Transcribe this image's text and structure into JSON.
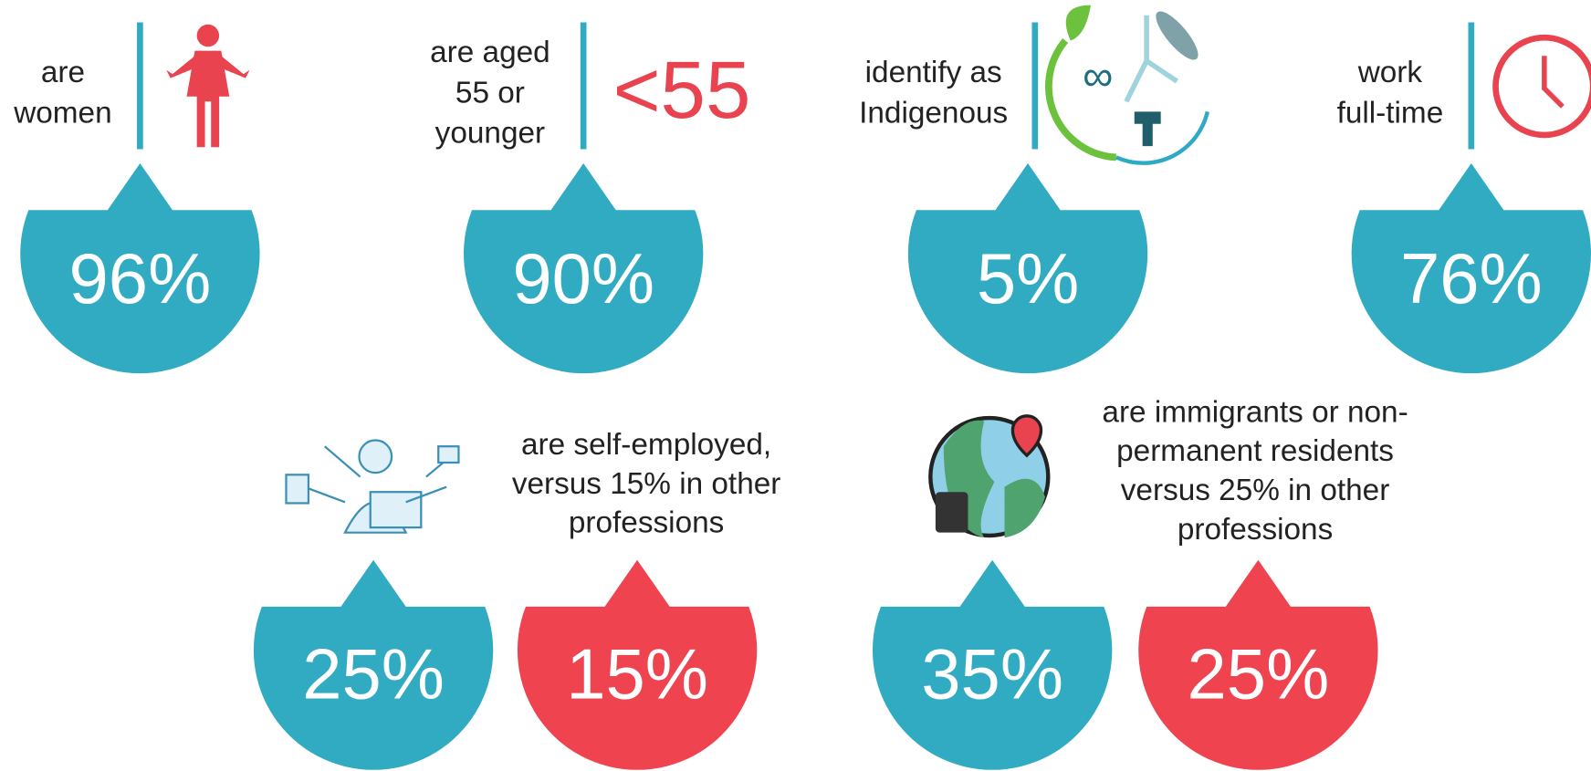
{
  "stats": [
    {
      "label": [
        "are",
        "women"
      ],
      "value": "96%"
    },
    {
      "label": [
        "are aged",
        "55 or",
        "younger"
      ],
      "value": "90%"
    },
    {
      "label": [
        "identify as",
        "Indigenous"
      ],
      "value": "5%"
    },
    {
      "label": [
        "work",
        "full-time"
      ],
      "value": "76%"
    }
  ],
  "age_highlight": "<55",
  "comparisons": [
    {
      "label": [
        "are self-employed,",
        "versus 15% in other",
        "professions"
      ],
      "value": "25%",
      "other_value": "15%"
    },
    {
      "label": [
        "are immigrants or non-",
        "permanent residents",
        "versus 25% in other",
        "professions"
      ],
      "value": "35%",
      "other_value": "25%"
    }
  ]
}
